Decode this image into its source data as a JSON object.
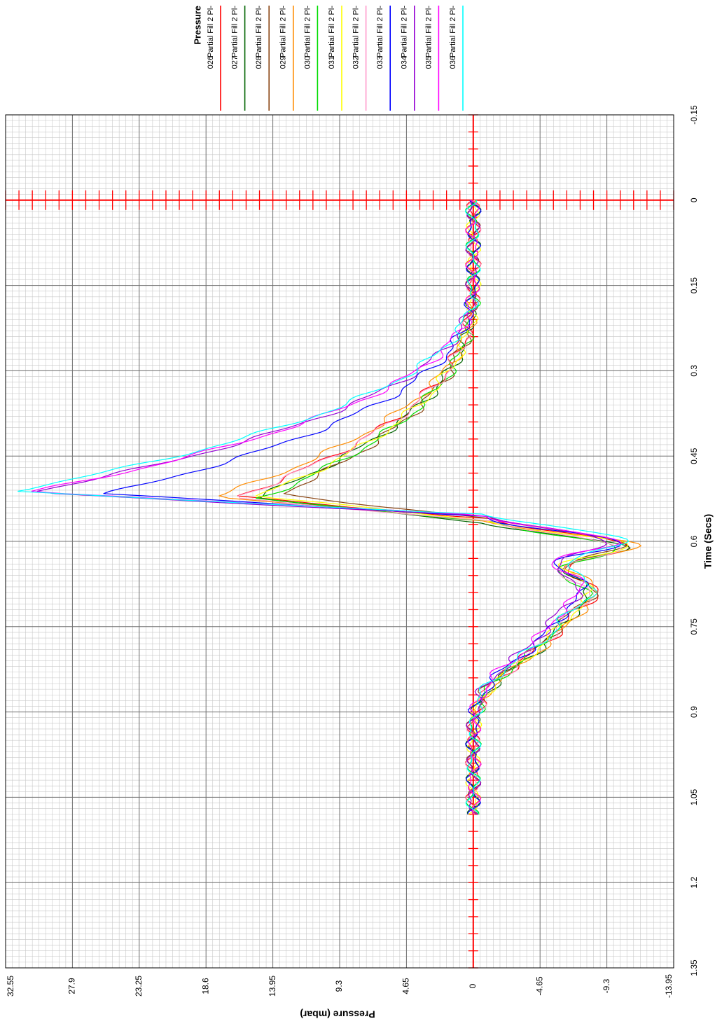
{
  "chart_data": {
    "type": "line",
    "orientation": "rotated-90-clockwise",
    "legend": {
      "title": "Pressure",
      "placement": "top-right",
      "entries": [
        {
          "label": "Partial Fill 2 Pl-",
          "id": "026",
          "color": "#ff0000"
        },
        {
          "label": "Partial Fill 2 Pl-",
          "id": "027",
          "color": "#006400"
        },
        {
          "label": "Partial Fill 2 Pl-",
          "id": "028",
          "color": "#8b4513"
        },
        {
          "label": "Partial Fill 2 Pl-",
          "id": "029",
          "color": "#ff8c00"
        },
        {
          "label": "Partial Fill 2 Pl-",
          "id": "030",
          "color": "#00dd00"
        },
        {
          "label": "Partial Fill 2 Pl-",
          "id": "031",
          "color": "#ffff00"
        },
        {
          "label": "Partial Fill 2 Pl-",
          "id": "032",
          "color": "#ff99cc"
        },
        {
          "label": "Partial Fill 2 Pl-",
          "id": "033",
          "color": "#0000ff"
        },
        {
          "label": "Partial Fill 2 Pl-",
          "id": "034",
          "color": "#9400d3"
        },
        {
          "label": "Partial Fill 2 Pl-",
          "id": "035",
          "color": "#ff00ff"
        },
        {
          "label": "Partial Fill 2 Pl-",
          "id": "036",
          "color": "#00ffff"
        }
      ]
    },
    "xlabel": "Time (Secs)",
    "ylabel": "Pressure (mbar)",
    "xlim": [
      -0.15,
      1.35
    ],
    "ylim": [
      -13.95,
      32.55
    ],
    "x_ticks": [
      "-0.15",
      "0",
      "0.15",
      "0.3",
      "0.45",
      "0.6",
      "0.75",
      "0.9",
      "1.05",
      "1.2",
      "1.35"
    ],
    "y_ticks": [
      "-13.95",
      "-9.3",
      "-4.65",
      "0",
      "4.65",
      "9.3",
      "13.95",
      "18.6",
      "23.25",
      "27.9",
      "32.55"
    ],
    "grid": true,
    "zero_axes_color": "#ff0000",
    "series": [
      {
        "id": "026",
        "color": "#ff0000",
        "peak": 16.3,
        "trough": -12.5,
        "shift": 0.0
      },
      {
        "id": "027",
        "color": "#006400",
        "peak": 15.3,
        "trough": -11.9,
        "shift": 0.005
      },
      {
        "id": "028",
        "color": "#8b4513",
        "peak": 13.5,
        "trough": -12.2,
        "shift": -0.003
      },
      {
        "id": "029",
        "color": "#ff8c00",
        "peak": 18.0,
        "trough": -12.7,
        "shift": 0.002
      },
      {
        "id": "030",
        "color": "#00dd00",
        "peak": 14.8,
        "trough": -11.5,
        "shift": 0.004
      },
      {
        "id": "031",
        "color": "#ffff00",
        "peak": 15.0,
        "trough": -12.0,
        "shift": 0.001
      },
      {
        "id": "032",
        "color": "#ff99cc",
        "peak": 16.6,
        "trough": -11.7,
        "shift": 0.003
      },
      {
        "id": "033",
        "color": "#0000ff",
        "peak": 25.5,
        "trough": -11.3,
        "shift": -0.004
      },
      {
        "id": "034",
        "color": "#9400d3",
        "peak": 31.0,
        "trough": -10.8,
        "shift": -0.006
      },
      {
        "id": "035",
        "color": "#ff00ff",
        "peak": 30.8,
        "trough": -11.0,
        "shift": -0.007
      },
      {
        "id": "036",
        "color": "#00ffff",
        "peak": 32.2,
        "trough": -12.3,
        "shift": -0.008
      }
    ]
  }
}
